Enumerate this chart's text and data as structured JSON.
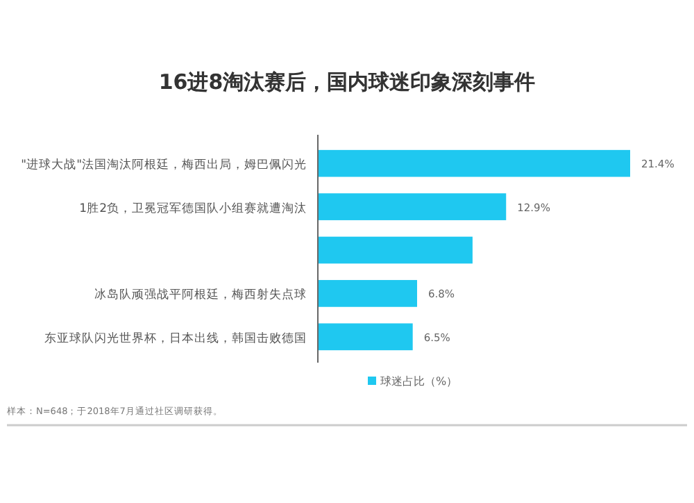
{
  "chart_data": {
    "type": "bar",
    "orientation": "horizontal",
    "title": "16进8淘汰赛后，国内球迷印象深刻事件",
    "categories": [
      "\"进球大战\"法国淘汰阿根廷，梅西出局，姆巴佩闪光",
      "1胜2负，卫冕冠军德国队小组赛就遭淘汰",
      null,
      "冰岛队顽强战平阿根廷，梅西射失点球",
      "东亚球队闪光世界杯，日本出线，韩国击败德国"
    ],
    "series": [
      {
        "name": "球迷占比（%）",
        "color": "#1fc8f0",
        "values": [
          21.4,
          12.9,
          10.6,
          6.8,
          6.5
        ],
        "value_labels": [
          "21.4%",
          "12.9%",
          null,
          "6.8%",
          "6.5%"
        ]
      }
    ],
    "legend": "bottom",
    "annotations": [
      "样本：N=648；于2018年7月通过社区调研获得。"
    ]
  }
}
